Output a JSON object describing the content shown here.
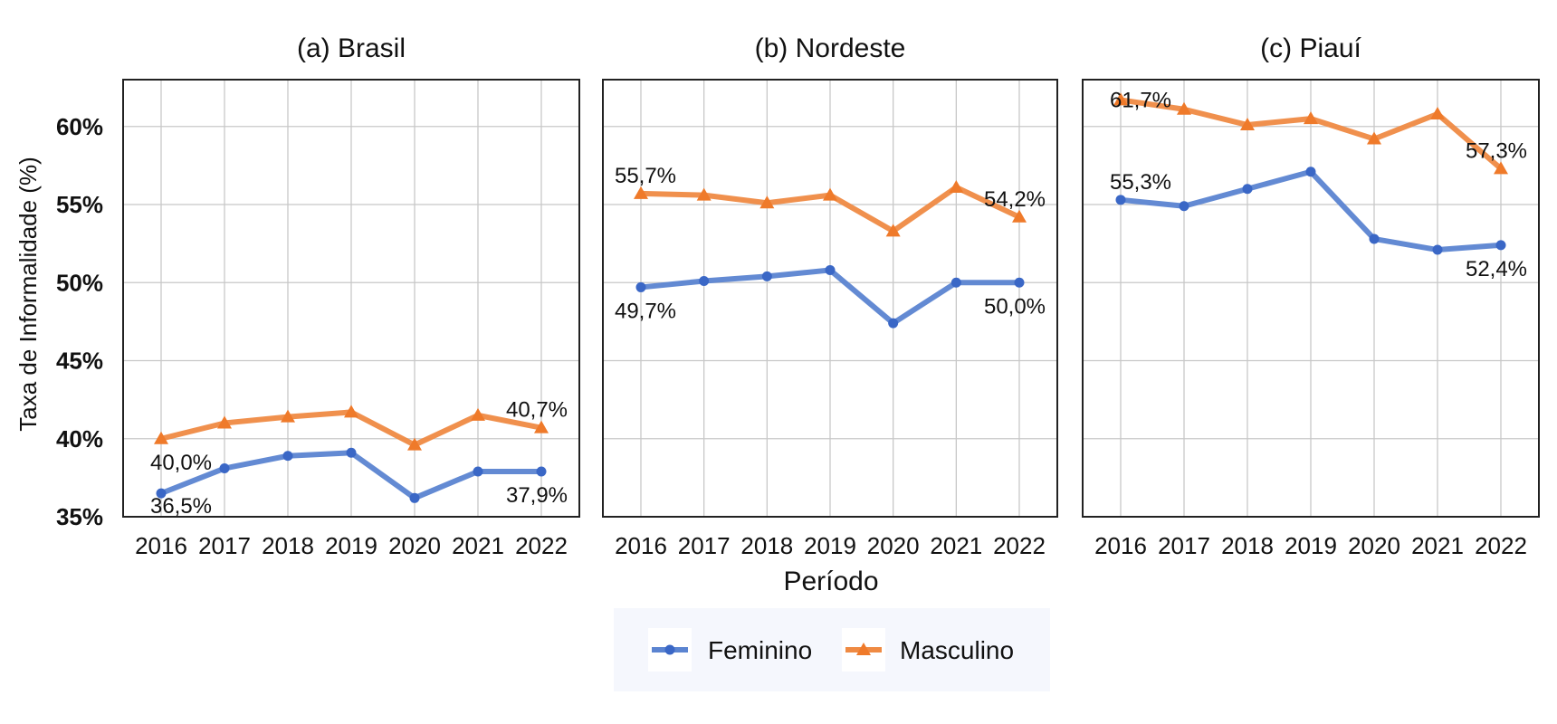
{
  "chart_data": {
    "type": "line",
    "ylabel": "Taxa de Informalidade (%)",
    "xlabel": "Período",
    "ylim": [
      35,
      63
    ],
    "yticks": [
      "35%",
      "40%",
      "45%",
      "50%",
      "55%",
      "60%"
    ],
    "ytick_values": [
      35,
      40,
      45,
      50,
      55,
      60
    ],
    "x": [
      "2016",
      "2017",
      "2018",
      "2019",
      "2020",
      "2021",
      "2022"
    ],
    "grid": true,
    "legend_position": "bottom",
    "colors": {
      "Feminino": "#5b84d1",
      "Masculino": "#ef8a43"
    },
    "legend": [
      "Feminino",
      "Masculino"
    ],
    "panels": [
      {
        "title": "(a) Brasil",
        "series": [
          {
            "name": "Feminino",
            "values": [
              36.5,
              38.1,
              38.9,
              39.1,
              36.2,
              37.9,
              37.9
            ]
          },
          {
            "name": "Masculino",
            "values": [
              40.0,
              41.0,
              41.4,
              41.7,
              39.6,
              41.5,
              40.7
            ]
          }
        ],
        "annotations": [
          {
            "text": "36,5%",
            "series": "Feminino",
            "index": 0
          },
          {
            "text": "37,9%",
            "series": "Feminino",
            "index": 6
          },
          {
            "text": "40,0%",
            "series": "Masculino",
            "index": 0
          },
          {
            "text": "40,7%",
            "series": "Masculino",
            "index": 6
          }
        ]
      },
      {
        "title": "(b) Nordeste",
        "series": [
          {
            "name": "Feminino",
            "values": [
              49.7,
              50.1,
              50.4,
              50.8,
              47.4,
              50.0,
              50.0
            ]
          },
          {
            "name": "Masculino",
            "values": [
              55.7,
              55.6,
              55.1,
              55.6,
              53.3,
              56.1,
              54.2
            ]
          }
        ],
        "annotations": [
          {
            "text": "49,7%",
            "series": "Feminino",
            "index": 0
          },
          {
            "text": "50,0%",
            "series": "Feminino",
            "index": 6
          },
          {
            "text": "55,7%",
            "series": "Masculino",
            "index": 0
          },
          {
            "text": "54,2%",
            "series": "Masculino",
            "index": 6
          }
        ]
      },
      {
        "title": "(c) Piauí",
        "series": [
          {
            "name": "Feminino",
            "values": [
              55.3,
              54.9,
              56.0,
              57.1,
              52.8,
              52.1,
              52.4
            ]
          },
          {
            "name": "Masculino",
            "values": [
              61.7,
              61.1,
              60.1,
              60.5,
              59.2,
              60.8,
              57.3
            ]
          }
        ],
        "annotations": [
          {
            "text": "55,3%",
            "series": "Feminino",
            "index": 0
          },
          {
            "text": "52,4%",
            "series": "Feminino",
            "index": 6
          },
          {
            "text": "61,7%",
            "series": "Masculino",
            "index": 0
          },
          {
            "text": "57,3%",
            "series": "Masculino",
            "index": 6
          }
        ]
      }
    ]
  }
}
